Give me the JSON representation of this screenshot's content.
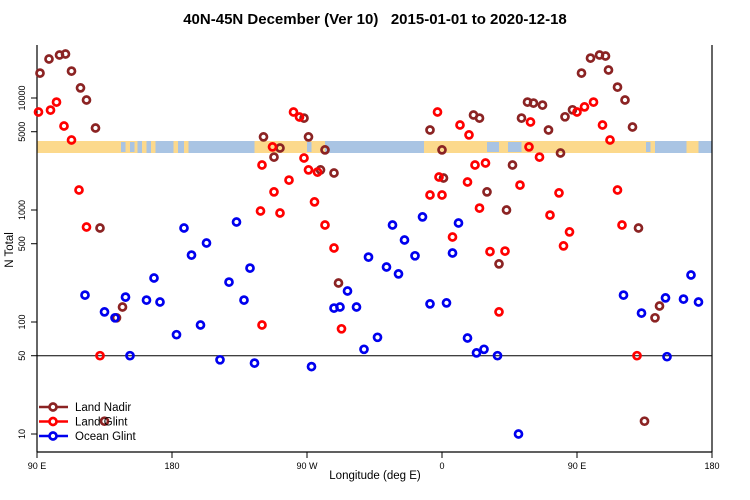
{
  "title": "40N-45N December (Ver 10)   2015-01-01 to 2020-12-18",
  "axes": {
    "y_label": "N Total",
    "x_label": "Longitude (deg E)",
    "y_scale": "log",
    "y_ticks": [
      {
        "label": "10000",
        "value": 10000
      },
      {
        "label": "5000",
        "value": 5000
      },
      {
        "label": "1000",
        "value": 1000
      },
      {
        "label": "500",
        "value": 500
      },
      {
        "label": "100",
        "value": 100
      },
      {
        "label": "50",
        "value": 50
      },
      {
        "label": "10",
        "value": 10
      }
    ],
    "x_ticks": [
      {
        "label": "90 E",
        "lon": 90
      },
      {
        "label": "180",
        "lon": 180
      },
      {
        "label": "90 W",
        "lon": 270
      },
      {
        "label": "0",
        "lon": 360
      },
      {
        "label": "90 E",
        "lon": 450
      },
      {
        "label": "180",
        "lon": 540
      }
    ],
    "x_range": [
      90,
      540
    ],
    "reference_line_value": 50
  },
  "legend": [
    {
      "label": "Land Nadir",
      "color": "#8B2323"
    },
    {
      "label": "Land Glint",
      "color": "#FF0000"
    },
    {
      "label": "Ocean Glint",
      "color": "#0000EE"
    }
  ],
  "map_band": {
    "ocean_color": "#a9c4e3",
    "land_color": "#fcd98c",
    "lon_range": [
      90,
      540
    ],
    "land_segments": [
      [
        90,
        157
      ],
      [
        160,
        163
      ],
      [
        166,
        169
      ],
      [
        181,
        184
      ],
      [
        188,
        191
      ],
      [
        235,
        282
      ],
      [
        348,
        502
      ],
      [
        523,
        531
      ]
    ],
    "lakes": [
      [
        146,
        149
      ],
      [
        152,
        155
      ],
      [
        270,
        273
      ],
      [
        390,
        398
      ],
      [
        404,
        413
      ],
      [
        496,
        499
      ]
    ]
  },
  "chart_data": {
    "type": "scatter",
    "title": "40N-45N December (Ver 10)   2015-01-01 to 2020-12-18",
    "xlabel": "Longitude (deg E)",
    "ylabel": "N Total",
    "x_axis_note": "longitude in continued deg E from 90 to 540 (90E-180-90W-0-90E-180)",
    "ylim": [
      9,
      30000
    ],
    "series": [
      {
        "name": "Land Nadir",
        "color": "#8B2323",
        "points": [
          [
            92,
            16700
          ],
          [
            98,
            22300
          ],
          [
            105,
            24200
          ],
          [
            109,
            24700
          ],
          [
            113,
            17400
          ],
          [
            119,
            12300
          ],
          [
            123,
            9600
          ],
          [
            129,
            5400
          ],
          [
            132,
            690
          ],
          [
            241,
            4490
          ],
          [
            248,
            2970
          ],
          [
            252,
            3580
          ],
          [
            268,
            6620
          ],
          [
            271,
            4490
          ],
          [
            279,
            2280
          ],
          [
            282,
            3440
          ],
          [
            288,
            2140
          ],
          [
            352,
            5180
          ],
          [
            360,
            3440
          ],
          [
            361,
            1930
          ],
          [
            381,
            7050
          ],
          [
            385,
            6620
          ],
          [
            390,
            1450
          ],
          [
            403,
            1000
          ],
          [
            407,
            2520
          ],
          [
            413,
            6620
          ],
          [
            417,
            9200
          ],
          [
            421,
            9000
          ],
          [
            427,
            8650
          ],
          [
            431,
            5180
          ],
          [
            439,
            3230
          ],
          [
            442,
            6800
          ],
          [
            447,
            7850
          ],
          [
            453,
            16700
          ],
          [
            459,
            22700
          ],
          [
            465,
            24200
          ],
          [
            469,
            23700
          ],
          [
            471,
            17800
          ],
          [
            477,
            12500
          ],
          [
            482,
            9600
          ],
          [
            487,
            5510
          ],
          [
            491,
            690
          ],
          [
            147,
            136
          ],
          [
            143,
            109
          ],
          [
            135,
            13
          ],
          [
            291,
            223
          ],
          [
            398,
            330
          ],
          [
            505,
            139
          ],
          [
            502,
            109
          ],
          [
            495,
            13
          ]
        ]
      },
      {
        "name": "Land Glint",
        "color": "#FF0000",
        "points": [
          [
            91,
            7500
          ],
          [
            99,
            7800
          ],
          [
            103,
            9200
          ],
          [
            108,
            5620
          ],
          [
            113,
            4220
          ],
          [
            118,
            1510
          ],
          [
            123,
            705
          ],
          [
            239,
            980
          ],
          [
            240,
            2520
          ],
          [
            247,
            3660
          ],
          [
            248,
            1450
          ],
          [
            252,
            940
          ],
          [
            258,
            1850
          ],
          [
            261,
            7500
          ],
          [
            265,
            6760
          ],
          [
            268,
            2910
          ],
          [
            271,
            2280
          ],
          [
            275,
            1180
          ],
          [
            277,
            2180
          ],
          [
            282,
            735
          ],
          [
            288,
            458
          ],
          [
            352,
            1360
          ],
          [
            357,
            7500
          ],
          [
            358,
            1970
          ],
          [
            360,
            1360
          ],
          [
            367,
            574
          ],
          [
            372,
            5740
          ],
          [
            377,
            1780
          ],
          [
            378,
            4680
          ],
          [
            382,
            2520
          ],
          [
            385,
            1040
          ],
          [
            389,
            2630
          ],
          [
            392,
            425
          ],
          [
            402,
            430
          ],
          [
            412,
            1670
          ],
          [
            418,
            3660
          ],
          [
            419,
            6110
          ],
          [
            425,
            2970
          ],
          [
            432,
            900
          ],
          [
            438,
            1420
          ],
          [
            441,
            478
          ],
          [
            445,
            637
          ],
          [
            450,
            7500
          ],
          [
            455,
            8320
          ],
          [
            461,
            9200
          ],
          [
            467,
            5740
          ],
          [
            472,
            4220
          ],
          [
            477,
            1510
          ],
          [
            480,
            735
          ],
          [
            132,
            50
          ],
          [
            240,
            94
          ],
          [
            293,
            87
          ],
          [
            398,
            123
          ],
          [
            490,
            50
          ]
        ]
      },
      {
        "name": "Ocean Glint",
        "color": "#0000EE",
        "points": [
          [
            122,
            174
          ],
          [
            135,
            123
          ],
          [
            142,
            109
          ],
          [
            149,
            167
          ],
          [
            152,
            50
          ],
          [
            163,
            157
          ],
          [
            168,
            247
          ],
          [
            172,
            151
          ],
          [
            183,
            77
          ],
          [
            188,
            690
          ],
          [
            193,
            396
          ],
          [
            199,
            94
          ],
          [
            203,
            507
          ],
          [
            212,
            46
          ],
          [
            218,
            227
          ],
          [
            223,
            782
          ],
          [
            228,
            157
          ],
          [
            232,
            303
          ],
          [
            235,
            43
          ],
          [
            273,
            40
          ],
          [
            288,
            133
          ],
          [
            292,
            136
          ],
          [
            297,
            189
          ],
          [
            303,
            136
          ],
          [
            308,
            57
          ],
          [
            311,
            380
          ],
          [
            317,
            73
          ],
          [
            323,
            310
          ],
          [
            327,
            735
          ],
          [
            331,
            269
          ],
          [
            335,
            540
          ],
          [
            342,
            390
          ],
          [
            347,
            867
          ],
          [
            352,
            145
          ],
          [
            363,
            148
          ],
          [
            367,
            413
          ],
          [
            371,
            766
          ],
          [
            377,
            72
          ],
          [
            383,
            53
          ],
          [
            388,
            57
          ],
          [
            397,
            50
          ],
          [
            411,
            10
          ],
          [
            481,
            174
          ],
          [
            493,
            120
          ],
          [
            509,
            164
          ],
          [
            510,
            49
          ],
          [
            521,
            160
          ],
          [
            526,
            263
          ],
          [
            531,
            151
          ]
        ]
      }
    ]
  }
}
